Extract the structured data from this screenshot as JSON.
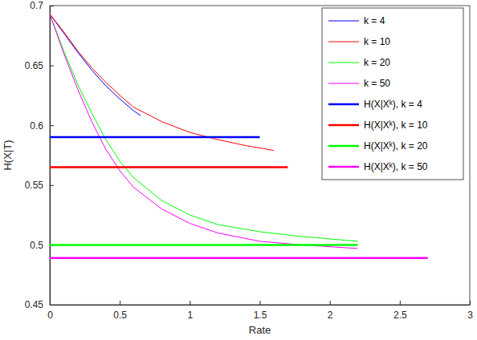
{
  "chart_data": {
    "type": "line",
    "x_label": "Rate",
    "y_label": "H(X|T)",
    "xlim": [
      0,
      3
    ],
    "xticks": [
      0,
      0.5,
      1,
      1.5,
      2,
      2.5,
      3
    ],
    "ylim": [
      0.45,
      0.7
    ],
    "yticks": [
      0.45,
      0.5,
      0.55,
      0.6,
      0.65,
      0.7
    ],
    "grid": false,
    "legend": "top-right",
    "series": [
      {
        "name": "k = 4",
        "color": "#0000ff",
        "line_style": "solid",
        "x": [
          0,
          0.1,
          0.2,
          0.3,
          0.4,
          0.5,
          0.6,
          0.65
        ],
        "values": [
          0.693,
          0.677,
          0.661,
          0.646,
          0.633,
          0.622,
          0.612,
          0.608
        ]
      },
      {
        "name": "k = 10",
        "color": "#ff0000",
        "line_style": "solid",
        "x": [
          0,
          0.1,
          0.2,
          0.3,
          0.4,
          0.5,
          0.6,
          0.8,
          1.0,
          1.2,
          1.4,
          1.6
        ],
        "values": [
          0.693,
          0.678,
          0.662,
          0.648,
          0.636,
          0.625,
          0.615,
          0.603,
          0.594,
          0.588,
          0.583,
          0.579
        ]
      },
      {
        "name": "k = 20",
        "color": "#00ff00",
        "line_style": "solid",
        "x": [
          0,
          0.1,
          0.2,
          0.3,
          0.4,
          0.5,
          0.6,
          0.8,
          1.0,
          1.2,
          1.5,
          1.8,
          2.2
        ],
        "values": [
          0.693,
          0.662,
          0.634,
          0.61,
          0.588,
          0.57,
          0.556,
          0.537,
          0.525,
          0.517,
          0.511,
          0.507,
          0.503
        ]
      },
      {
        "name": "k = 50",
        "color": "#ff00ff",
        "line_style": "solid",
        "x": [
          0,
          0.1,
          0.2,
          0.3,
          0.4,
          0.5,
          0.6,
          0.8,
          1.0,
          1.2,
          1.5,
          1.8,
          2.2
        ],
        "values": [
          0.693,
          0.66,
          0.63,
          0.603,
          0.58,
          0.562,
          0.548,
          0.53,
          0.518,
          0.51,
          0.503,
          0.5,
          0.497
        ]
      },
      {
        "name": "H(X|Xᵏ), k = 4",
        "color": "#0000ff",
        "line_style": "solid",
        "x": [
          0,
          1.5
        ],
        "values": [
          0.59,
          0.59
        ]
      },
      {
        "name": "H(X|Xᵏ), k = 10",
        "color": "#ff0000",
        "line_style": "solid",
        "x": [
          0,
          1.7
        ],
        "values": [
          0.565,
          0.565
        ]
      },
      {
        "name": "H(X|Xᵏ), k = 20",
        "color": "#00ff00",
        "line_style": "solid",
        "x": [
          0,
          2.2
        ],
        "values": [
          0.5,
          0.5
        ]
      },
      {
        "name": "H(X|Xᵏ), k = 50",
        "color": "#ff00ff",
        "line_style": "solid",
        "x": [
          0,
          2.7
        ],
        "values": [
          0.489,
          0.489
        ]
      }
    ]
  }
}
